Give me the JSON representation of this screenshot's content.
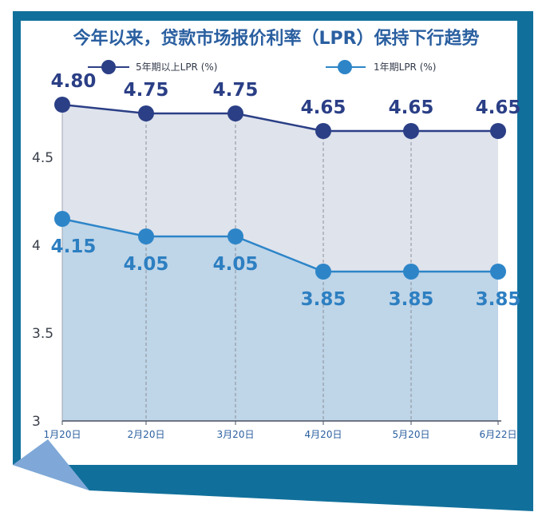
{
  "chart_data": {
    "type": "line",
    "title": "今年以来，贷款市场报价利率（LPR）保持下行趋势",
    "categories": [
      "1月20日",
      "2月20日",
      "3月20日",
      "4月20日",
      "5月20日",
      "6月22日"
    ],
    "y_ticks": [
      "3",
      "3.5",
      "4",
      "4.5"
    ],
    "ylim": [
      3,
      4.85
    ],
    "grid": "vertical dashed",
    "legend_position": "top",
    "series": [
      {
        "name": "5年期以上LPR (%)",
        "color": "#2b3f86",
        "fill": "#dfe3ec",
        "values": [
          4.8,
          4.75,
          4.75,
          4.65,
          4.65,
          4.65
        ],
        "labels": [
          "4.80",
          "4.75",
          "4.75",
          "4.65",
          "4.65",
          "4.65"
        ]
      },
      {
        "name": "1年期LPR (%)",
        "color": "#2d85c8",
        "fill": "#bfd5e8",
        "values": [
          4.15,
          4.05,
          4.05,
          3.85,
          3.85,
          3.85
        ],
        "labels": [
          "4.15",
          "4.05",
          "4.05",
          "3.85",
          "3.85",
          "3.85"
        ]
      }
    ]
  },
  "colors": {
    "frame": "#11709b",
    "accent_fold": "#7fa8d8",
    "title": "#2a5fa0"
  }
}
